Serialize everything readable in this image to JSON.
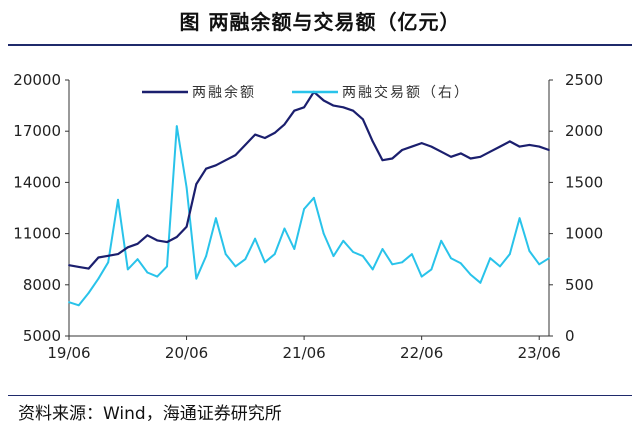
{
  "header": {
    "title": "图    两融余额与交易额（亿元）"
  },
  "footer": {
    "source": "资料来源：Wind，海通证券研究所"
  },
  "chart_data": {
    "type": "line",
    "x_ticks": [
      "19/06",
      "20/06",
      "21/06",
      "22/06",
      "23/06"
    ],
    "x_range": [
      "2019-06",
      "2023-07"
    ],
    "y_left": {
      "ticks": [
        "20000",
        "17000",
        "14000",
        "11000",
        "8000",
        "5000"
      ],
      "ylim": [
        5000,
        20000
      ]
    },
    "y_right": {
      "ticks": [
        "2500",
        "2000",
        "1500",
        "1000",
        "500",
        "0"
      ],
      "ylim": [
        0,
        2500
      ]
    },
    "legend_position": "top",
    "colors": {
      "balance": "#1b1f6e",
      "turnover": "#29c3ea",
      "axis": "#333333"
    },
    "series": [
      {
        "name": "两融余额",
        "axis": "left",
        "x": [
          "2019-06",
          "2019-07",
          "2019-08",
          "2019-09",
          "2019-10",
          "2019-11",
          "2019-12",
          "2020-01",
          "2020-02",
          "2020-03",
          "2020-04",
          "2020-05",
          "2020-06",
          "2020-07",
          "2020-08",
          "2020-09",
          "2020-10",
          "2020-11",
          "2020-12",
          "2021-01",
          "2021-02",
          "2021-03",
          "2021-04",
          "2021-05",
          "2021-06",
          "2021-07",
          "2021-08",
          "2021-09",
          "2021-10",
          "2021-11",
          "2021-12",
          "2022-01",
          "2022-02",
          "2022-03",
          "2022-04",
          "2022-05",
          "2022-06",
          "2022-07",
          "2022-08",
          "2022-09",
          "2022-10",
          "2022-11",
          "2022-12",
          "2023-01",
          "2023-02",
          "2023-03",
          "2023-04",
          "2023-05",
          "2023-06",
          "2023-07"
        ],
        "values": [
          9150,
          9050,
          8950,
          9600,
          9700,
          9800,
          10200,
          10400,
          10900,
          10600,
          10500,
          10800,
          11400,
          13900,
          14800,
          15000,
          15300,
          15600,
          16200,
          16800,
          16600,
          16900,
          17400,
          18200,
          18400,
          19300,
          18800,
          18500,
          18400,
          18200,
          17700,
          16400,
          15300,
          15400,
          15900,
          16100,
          16300,
          16100,
          15800,
          15500,
          15700,
          15400,
          15500,
          15800,
          16100,
          16400,
          16100,
          16200,
          16100,
          15900
        ]
      },
      {
        "name": "两融交易额（右）",
        "axis": "right",
        "x": [
          "2019-06",
          "2019-07",
          "2019-08",
          "2019-09",
          "2019-10",
          "2019-11",
          "2019-12",
          "2020-01",
          "2020-02",
          "2020-03",
          "2020-04",
          "2020-05",
          "2020-06",
          "2020-07",
          "2020-08",
          "2020-09",
          "2020-10",
          "2020-11",
          "2020-12",
          "2021-01",
          "2021-02",
          "2021-03",
          "2021-04",
          "2021-05",
          "2021-06",
          "2021-07",
          "2021-08",
          "2021-09",
          "2021-10",
          "2021-11",
          "2021-12",
          "2022-01",
          "2022-02",
          "2022-03",
          "2022-04",
          "2022-05",
          "2022-06",
          "2022-07",
          "2022-08",
          "2022-09",
          "2022-10",
          "2022-11",
          "2022-12",
          "2023-01",
          "2023-02",
          "2023-03",
          "2023-04",
          "2023-05",
          "2023-06",
          "2023-07"
        ],
        "values": [
          330,
          300,
          420,
          560,
          720,
          1330,
          650,
          750,
          620,
          580,
          680,
          2050,
          1450,
          560,
          780,
          1150,
          800,
          680,
          750,
          950,
          720,
          800,
          1050,
          850,
          1240,
          1350,
          1000,
          780,
          930,
          820,
          780,
          650,
          850,
          700,
          720,
          800,
          580,
          650,
          930,
          760,
          710,
          600,
          520,
          760,
          680,
          800,
          1150,
          830,
          700,
          760
        ]
      }
    ]
  }
}
